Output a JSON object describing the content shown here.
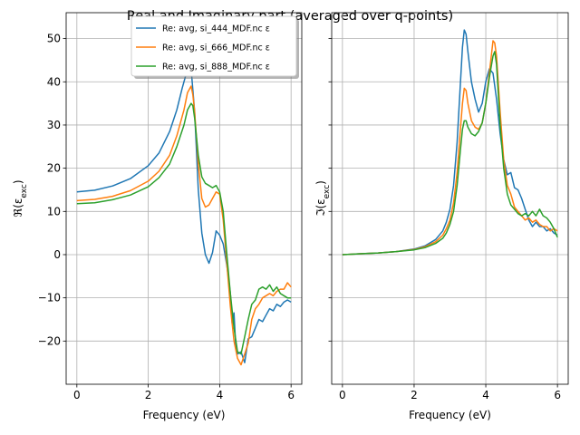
{
  "figure": {
    "title": "Real and Imaginary part (averaged over q-points)"
  },
  "colors": {
    "series0": "#1f77b4",
    "series1": "#ff7f0e",
    "series2": "#2ca02c",
    "grid": "#b0b0b0"
  },
  "chart_data": [
    {
      "type": "line",
      "title": "",
      "xlabel": "Frequency (eV)",
      "ylabel": "ℜ(ε_exc)",
      "xlim": [
        -0.3,
        6.3
      ],
      "ylim": [
        -30,
        56
      ],
      "xticks": [
        0,
        2,
        4,
        6
      ],
      "yticks": [
        -20,
        -10,
        0,
        10,
        20,
        30,
        40,
        50
      ],
      "grid": true,
      "legend": "top-right",
      "series": [
        {
          "name": "Re: avg, si_444_MDF.nc ε",
          "x": [
            0,
            0.5,
            1.0,
            1.5,
            2.0,
            2.3,
            2.6,
            2.8,
            2.95,
            3.05,
            3.15,
            3.2,
            3.3,
            3.4,
            3.5,
            3.6,
            3.7,
            3.8,
            3.9,
            4.0,
            4.1,
            4.2,
            4.3,
            4.35,
            4.4,
            4.45,
            4.5,
            4.6,
            4.7,
            4.8,
            4.9,
            5.0,
            5.1,
            5.2,
            5.3,
            5.4,
            5.5,
            5.6,
            5.7,
            5.8,
            5.9,
            6.0
          ],
          "y": [
            14.5,
            14.9,
            15.9,
            17.6,
            20.6,
            23.5,
            28.5,
            33.5,
            38.5,
            41.5,
            43.5,
            43.0,
            33.0,
            15.0,
            5.0,
            0.0,
            -2.0,
            0.5,
            5.5,
            4.5,
            2.5,
            -2.5,
            -9.0,
            -16.0,
            -13.5,
            -21.0,
            -23.0,
            -22.5,
            -25.0,
            -19.5,
            -19.0,
            -17.0,
            -15.0,
            -15.5,
            -14.0,
            -12.5,
            -13.0,
            -11.5,
            -12.0,
            -11.0,
            -10.5,
            -11.0
          ]
        },
        {
          "name": "Re: avg, si_666_MDF.nc ε",
          "x": [
            0,
            0.5,
            1.0,
            1.5,
            2.0,
            2.3,
            2.6,
            2.8,
            3.0,
            3.1,
            3.2,
            3.25,
            3.3,
            3.4,
            3.5,
            3.6,
            3.7,
            3.8,
            3.9,
            4.0,
            4.1,
            4.2,
            4.3,
            4.4,
            4.5,
            4.6,
            4.7,
            4.8,
            4.9,
            5.0,
            5.1,
            5.2,
            5.3,
            5.4,
            5.5,
            5.6,
            5.7,
            5.8,
            5.9,
            6.0
          ],
          "y": [
            12.5,
            12.8,
            13.5,
            14.8,
            17.0,
            19.3,
            23.0,
            27.5,
            33.5,
            37.5,
            39.0,
            37.0,
            33.0,
            21.0,
            13.0,
            11.0,
            11.5,
            13.0,
            14.5,
            14.0,
            8.0,
            -2.0,
            -12.0,
            -20.0,
            -24.0,
            -25.5,
            -23.0,
            -20.5,
            -15.0,
            -12.5,
            -11.5,
            -10.0,
            -9.5,
            -9.0,
            -9.5,
            -8.5,
            -8.0,
            -8.0,
            -6.5,
            -7.5
          ]
        },
        {
          "name": "Re: avg, si_888_MDF.nc ε",
          "x": [
            0,
            0.5,
            1.0,
            1.5,
            2.0,
            2.3,
            2.6,
            2.8,
            3.0,
            3.1,
            3.2,
            3.25,
            3.3,
            3.4,
            3.5,
            3.6,
            3.7,
            3.8,
            3.9,
            4.0,
            4.1,
            4.2,
            4.3,
            4.4,
            4.5,
            4.6,
            4.7,
            4.8,
            4.9,
            5.0,
            5.1,
            5.2,
            5.3,
            5.4,
            5.5,
            5.6,
            5.7,
            5.8,
            5.9,
            6.0
          ],
          "y": [
            11.8,
            12.0,
            12.7,
            13.8,
            15.7,
            17.8,
            21.0,
            25.0,
            30.0,
            33.5,
            35.0,
            34.5,
            31.5,
            23.0,
            18.0,
            16.5,
            16.0,
            15.5,
            16.0,
            14.5,
            10.0,
            0.0,
            -9.0,
            -17.0,
            -22.5,
            -23.0,
            -19.0,
            -15.0,
            -11.5,
            -10.5,
            -8.0,
            -7.5,
            -8.0,
            -7.0,
            -8.5,
            -7.5,
            -9.0,
            -9.5,
            -10.0,
            -10.0
          ]
        }
      ]
    },
    {
      "type": "line",
      "title": "",
      "xlabel": "Frequency (eV)",
      "ylabel": "ℑ(ε_exc)",
      "xlim": [
        -0.3,
        6.3
      ],
      "ylim": [
        -30,
        56
      ],
      "xticks": [
        0,
        2,
        4,
        6
      ],
      "yticks": [
        -20,
        -10,
        0,
        10,
        20,
        30,
        40,
        50
      ],
      "grid": true,
      "series": [
        {
          "name": "",
          "x": [
            0,
            0.5,
            1.0,
            1.5,
            2.0,
            2.3,
            2.6,
            2.8,
            2.9,
            3.0,
            3.1,
            3.2,
            3.3,
            3.35,
            3.4,
            3.45,
            3.5,
            3.6,
            3.7,
            3.8,
            3.9,
            4.0,
            4.1,
            4.2,
            4.3,
            4.4,
            4.5,
            4.6,
            4.7,
            4.8,
            4.9,
            5.0,
            5.1,
            5.2,
            5.3,
            5.4,
            5.5,
            5.6,
            5.7,
            5.8,
            5.9,
            6.0
          ],
          "y": [
            0,
            0.2,
            0.4,
            0.7,
            1.3,
            2.0,
            3.5,
            5.5,
            7.5,
            10.5,
            16.0,
            26.0,
            41.0,
            48.0,
            52.0,
            51.0,
            47.0,
            40.0,
            36.0,
            33.0,
            35.0,
            40.0,
            43.0,
            42.0,
            36.0,
            28.0,
            22.0,
            18.5,
            19.0,
            15.5,
            15.0,
            13.0,
            10.5,
            8.0,
            6.5,
            7.5,
            6.5,
            6.5,
            5.5,
            6.0,
            5.0,
            4.5
          ]
        },
        {
          "name": "",
          "x": [
            0,
            0.5,
            1.0,
            1.5,
            2.0,
            2.3,
            2.6,
            2.8,
            2.9,
            3.0,
            3.1,
            3.2,
            3.3,
            3.35,
            3.4,
            3.45,
            3.5,
            3.6,
            3.7,
            3.8,
            3.9,
            4.0,
            4.1,
            4.2,
            4.25,
            4.3,
            4.4,
            4.5,
            4.6,
            4.7,
            4.8,
            4.9,
            5.0,
            5.1,
            5.2,
            5.3,
            5.4,
            5.5,
            5.6,
            5.7,
            5.8,
            5.9,
            6.0
          ],
          "y": [
            0,
            0.2,
            0.4,
            0.7,
            1.2,
            1.8,
            3.0,
            4.5,
            6.0,
            8.0,
            12.0,
            19.0,
            30.0,
            35.0,
            38.5,
            38.0,
            35.0,
            31.0,
            29.5,
            29.0,
            30.5,
            35.0,
            42.0,
            49.5,
            49.0,
            46.0,
            33.0,
            22.0,
            16.0,
            14.0,
            11.0,
            10.0,
            9.0,
            8.0,
            8.5,
            7.5,
            8.0,
            7.0,
            6.5,
            6.5,
            5.5,
            6.0,
            5.5
          ]
        },
        {
          "name": "",
          "x": [
            0,
            0.5,
            1.0,
            1.5,
            2.0,
            2.3,
            2.6,
            2.8,
            2.9,
            3.0,
            3.1,
            3.2,
            3.3,
            3.35,
            3.4,
            3.45,
            3.5,
            3.6,
            3.7,
            3.8,
            3.9,
            4.0,
            4.1,
            4.2,
            4.25,
            4.3,
            4.4,
            4.5,
            4.6,
            4.7,
            4.8,
            4.9,
            5.0,
            5.1,
            5.2,
            5.3,
            5.4,
            5.5,
            5.6,
            5.7,
            5.8,
            5.9,
            6.0
          ],
          "y": [
            0,
            0.2,
            0.4,
            0.7,
            1.1,
            1.6,
            2.6,
            3.8,
            5.0,
            7.0,
            10.0,
            16.0,
            25.0,
            29.0,
            31.0,
            31.0,
            29.5,
            28.0,
            27.5,
            28.5,
            30.5,
            35.0,
            41.0,
            46.0,
            47.0,
            44.0,
            30.0,
            20.0,
            14.0,
            11.5,
            10.5,
            9.5,
            9.0,
            9.5,
            9.0,
            10.0,
            9.0,
            10.5,
            9.0,
            8.5,
            7.5,
            6.0,
            4.0
          ]
        }
      ]
    }
  ]
}
